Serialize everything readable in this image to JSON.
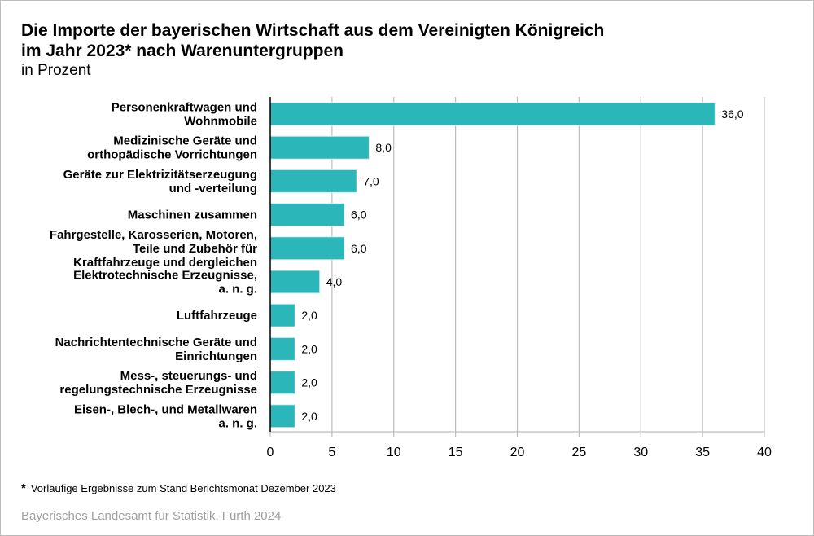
{
  "title_line1": "Die Importe der bayerischen Wirtschaft aus dem Vereinigten Königreich",
  "title_line2": "im Jahr 2023* nach Warenuntergruppen",
  "subtitle": "in Prozent",
  "footnote_marker": "*",
  "footnote": "Vorläufige Ergebnisse zum Stand Berichtsmonat Dezember 2023",
  "source": "Bayerisches Landesamt für Statistik, Fürth 2024",
  "colors": {
    "bar": "#2bb7b9",
    "grid": "#bdbdbd",
    "axis": "#000000"
  },
  "chart_data": {
    "type": "bar",
    "orientation": "horizontal",
    "categories": [
      [
        "Personenkraftwagen und",
        "Wohnmobile"
      ],
      [
        "Medizinische Geräte und",
        "orthopädische Vorrichtungen"
      ],
      [
        "Geräte zur Elektrizitätserzeugung",
        "und -verteilung"
      ],
      [
        "Maschinen zusammen"
      ],
      [
        "Fahrgestelle, Karosserien, Motoren,",
        "Teile und Zubehör für",
        "Kraftfahrzeuge und dergleichen"
      ],
      [
        "Elektrotechnische Erzeugnisse,",
        "a. n. g."
      ],
      [
        "Luftfahrzeuge"
      ],
      [
        "Nachrichtentechnische Geräte und",
        "Einrichtungen"
      ],
      [
        "Mess-, steuerungs- und",
        "regelungstechnische Erzeugnisse"
      ],
      [
        "Eisen-, Blech-, und Metallwaren",
        "a. n. g."
      ]
    ],
    "values": [
      36.0,
      8.0,
      7.0,
      6.0,
      6.0,
      4.0,
      2.0,
      2.0,
      2.0,
      2.0
    ],
    "value_labels": [
      "36,0",
      "8,0",
      "7,0",
      "6,0",
      "6,0",
      "4,0",
      "2,0",
      "2,0",
      "2,0",
      "2,0"
    ],
    "xlim": [
      0,
      40
    ],
    "xticks": [
      0,
      5,
      10,
      15,
      20,
      25,
      30,
      35,
      40
    ],
    "grid": true,
    "xlabel": "",
    "ylabel": ""
  }
}
